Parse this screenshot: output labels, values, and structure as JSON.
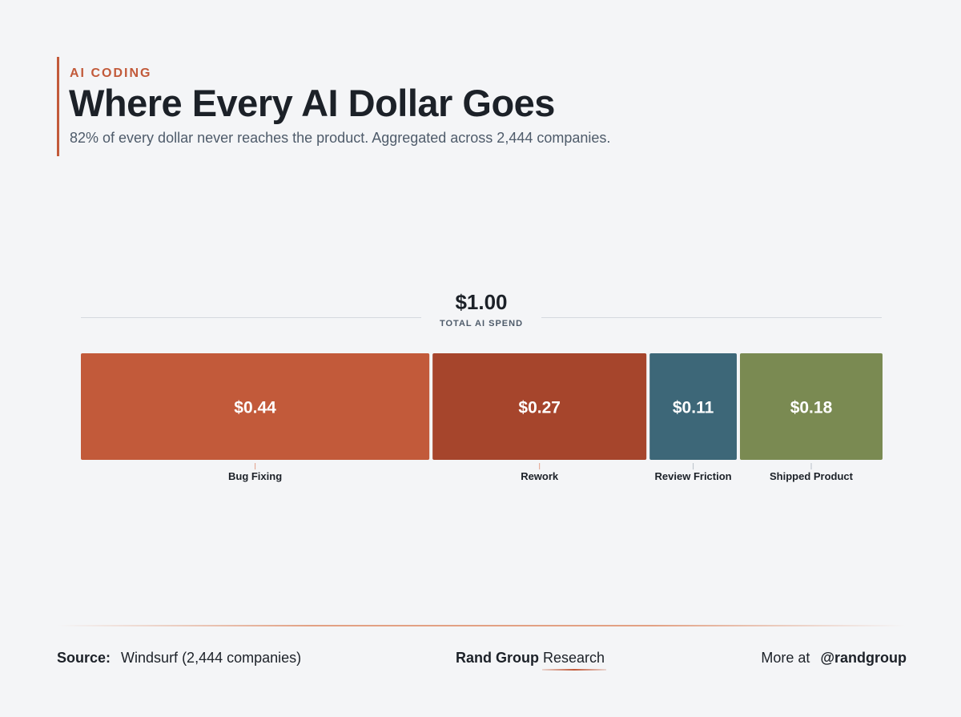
{
  "header": {
    "kicker": "AI CODING",
    "title": "Where Every AI Dollar Goes",
    "subtitle": "82% of every dollar never reaches the product. Aggregated across 2,444 companies."
  },
  "total": {
    "value": "$1.00",
    "label": "TOTAL AI SPEND"
  },
  "chart_data": {
    "type": "bar",
    "orientation": "horizontal-stacked",
    "total": 1.0,
    "categories": [
      "Bug Fixing",
      "Rework",
      "Review Friction",
      "Shipped Product"
    ],
    "values": [
      0.44,
      0.27,
      0.11,
      0.18
    ],
    "value_labels": [
      "$0.44",
      "$0.27",
      "$0.11",
      "$0.18"
    ],
    "colors": [
      "#c25a3a",
      "#a6452c",
      "#3d6778",
      "#7a8a52"
    ],
    "tick_colors": [
      "#e3a08a",
      "#e3a08a",
      "#b8c0c8",
      "#b8c0c8"
    ]
  },
  "footer": {
    "source_label": "Source:",
    "source_value": "Windsurf (2,444 companies)",
    "brand_name": "Rand Group",
    "brand_suffix": "Research",
    "more_label": "More at",
    "more_handle": "@randgroup"
  }
}
